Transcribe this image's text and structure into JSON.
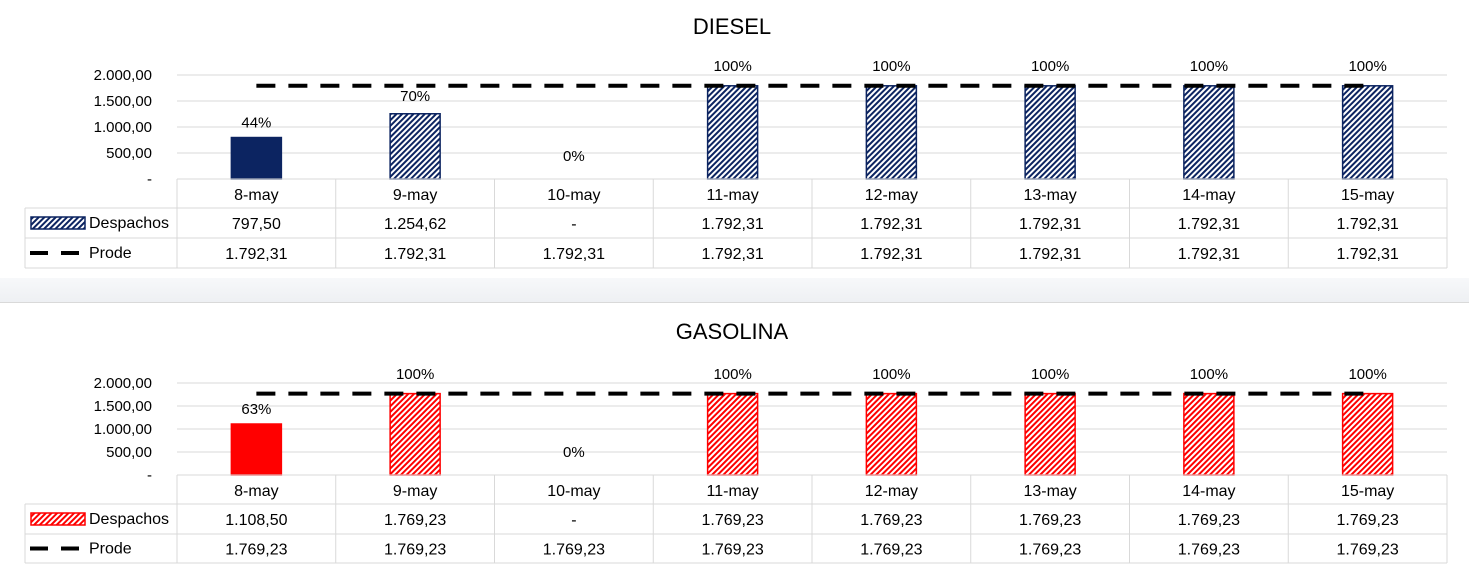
{
  "colors": {
    "diesel_bar": "#0c2461",
    "gasolina_bar": "#ff0000",
    "prode_line": "#000000",
    "grid": "#d9d9d9"
  },
  "chart_data": [
    {
      "type": "bar",
      "title": "DIESEL",
      "categories": [
        "8-may",
        "9-may",
        "10-may",
        "11-may",
        "12-may",
        "13-may",
        "14-may",
        "15-may"
      ],
      "y_ticks": [
        "2.000,00",
        "1.500,00",
        "1.000,00",
        "500,00",
        "-"
      ],
      "ylim": [
        0,
        2000
      ],
      "grid": true,
      "series": [
        {
          "name": "Despachos",
          "kind": "bar",
          "values": [
            797.5,
            1254.62,
            0,
            1792.31,
            1792.31,
            1792.31,
            1792.31,
            1792.31
          ],
          "value_labels": [
            "797,50",
            "1.254,62",
            "-",
            "1.792,31",
            "1.792,31",
            "1.792,31",
            "1.792,31",
            "1.792,31"
          ],
          "fill": [
            "solid",
            "hatched",
            "hatched",
            "hatched",
            "hatched",
            "hatched",
            "hatched",
            "hatched"
          ]
        },
        {
          "name": "Prode",
          "kind": "dashed-line",
          "values": [
            1792.31,
            1792.31,
            1792.31,
            1792.31,
            1792.31,
            1792.31,
            1792.31,
            1792.31
          ],
          "value_labels": [
            "1.792,31",
            "1.792,31",
            "1.792,31",
            "1.792,31",
            "1.792,31",
            "1.792,31",
            "1.792,31",
            "1.792,31"
          ]
        }
      ],
      "percent_labels": [
        "44%",
        "70%",
        "0%",
        "100%",
        "100%",
        "100%",
        "100%",
        "100%"
      ]
    },
    {
      "type": "bar",
      "title": "GASOLINA",
      "categories": [
        "8-may",
        "9-may",
        "10-may",
        "11-may",
        "12-may",
        "13-may",
        "14-may",
        "15-may"
      ],
      "y_ticks": [
        "2.000,00",
        "1.500,00",
        "1.000,00",
        "500,00",
        "-"
      ],
      "ylim": [
        0,
        2000
      ],
      "grid": true,
      "series": [
        {
          "name": "Despachos",
          "kind": "bar",
          "values": [
            1108.5,
            1769.23,
            0,
            1769.23,
            1769.23,
            1769.23,
            1769.23,
            1769.23
          ],
          "value_labels": [
            "1.108,50",
            "1.769,23",
            "-",
            "1.769,23",
            "1.769,23",
            "1.769,23",
            "1.769,23",
            "1.769,23"
          ],
          "fill": [
            "solid",
            "hatched",
            "hatched",
            "hatched",
            "hatched",
            "hatched",
            "hatched",
            "hatched"
          ]
        },
        {
          "name": "Prode",
          "kind": "dashed-line",
          "values": [
            1769.23,
            1769.23,
            1769.23,
            1769.23,
            1769.23,
            1769.23,
            1769.23,
            1769.23
          ],
          "value_labels": [
            "1.769,23",
            "1.769,23",
            "1.769,23",
            "1.769,23",
            "1.769,23",
            "1.769,23",
            "1.769,23",
            "1.769,23"
          ]
        }
      ],
      "percent_labels": [
        "63%",
        "100%",
        "0%",
        "100%",
        "100%",
        "100%",
        "100%",
        "100%"
      ]
    }
  ]
}
